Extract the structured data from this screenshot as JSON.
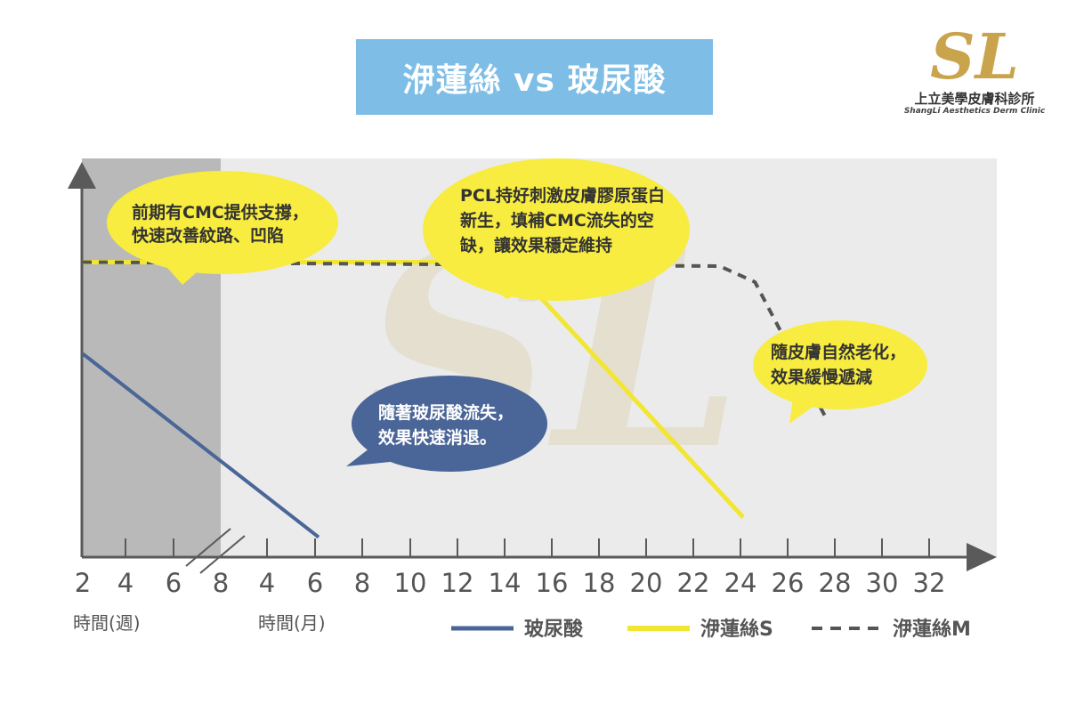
{
  "title": "洢蓮絲 vs 玻尿酸",
  "logo": {
    "name": "上立美學皮膚科診所",
    "subtitle": "ShangLi Aesthetics Derm Clinic",
    "watermark_text": "SL"
  },
  "colors": {
    "title_bg": "#7dbde6",
    "hyaluronic": "#4a6597",
    "ellanse_s": "#f2e633",
    "ellanse_m": "#555555",
    "early_band": "#b9b9b9",
    "plot_bg": "#ebebeb",
    "logo_gold": "#c9a44c"
  },
  "chart_data": {
    "type": "line",
    "x_ticks_weeks": [
      "2",
      "4",
      "6",
      "8"
    ],
    "x_ticks_months": [
      "4",
      "6",
      "8",
      "10",
      "12",
      "14",
      "16",
      "18",
      "20",
      "22",
      "24",
      "26",
      "28",
      "30",
      "32"
    ],
    "xlabel_weeks": "時間(週)",
    "xlabel_months": "時間(月)",
    "ylabel": "",
    "ylim": [
      0,
      1
    ],
    "series": [
      {
        "name": "玻尿酸",
        "style": "solid",
        "points": [
          [
            2,
            0.51
          ],
          [
            12,
            0.05
          ]
        ]
      },
      {
        "name": "洢蓮絲S",
        "style": "solid",
        "points": [
          [
            2,
            0.74
          ],
          [
            19,
            0.74
          ],
          [
            20.5,
            0.71
          ],
          [
            30,
            0.1
          ]
        ]
      },
      {
        "name": "洢蓮絲M",
        "style": "dashed",
        "points": [
          [
            2,
            0.74
          ],
          [
            29,
            0.73
          ],
          [
            30.5,
            0.69
          ],
          [
            33.5,
            0.35
          ]
        ]
      }
    ],
    "annotations": [
      {
        "text": [
          "前期有CMC提供支撐，",
          "快速改善紋路、凹陷"
        ],
        "style": "yellow"
      },
      {
        "text": [
          "PCL持好刺激皮膚膠原蛋白",
          "新生，填補CMC流失的空",
          "缺，讓效果穩定維持"
        ],
        "style": "yellow"
      },
      {
        "text": [
          "隨皮膚自然老化，",
          "效果緩慢遞減"
        ],
        "style": "yellow"
      },
      {
        "text": [
          "隨著玻尿酸流失，",
          "效果快速消退。"
        ],
        "style": "blue"
      }
    ],
    "grid": false,
    "legend_position": "bottom-right"
  }
}
